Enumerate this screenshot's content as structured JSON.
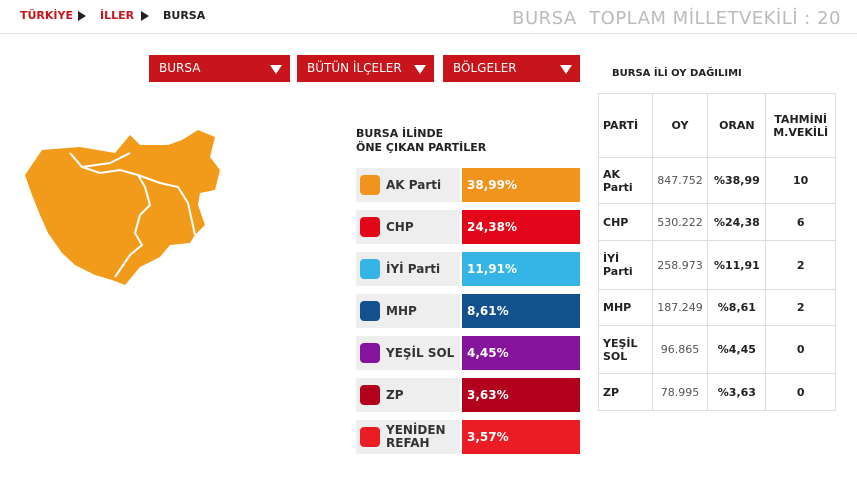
{
  "breadcrumb": [
    "TÜRKİYE",
    "İLLER",
    "BURSA"
  ],
  "header": {
    "title": "BURSA  TOPLAM MİLLETVEKİLİ : 20"
  },
  "dropdowns": [
    "BURSA",
    "BÜTÜN İLÇELER",
    "BÖLGELER"
  ],
  "parties": {
    "heading": [
      "BURSA İLİNDE",
      "ÖNE ÇIKAN PARTİLER"
    ],
    "items": [
      {
        "name": "AK Parti",
        "share": "38,99%",
        "color": "#f0941d"
      },
      {
        "name": "CHP",
        "share": "24,38%",
        "color": "#e3061a"
      },
      {
        "name": "İYİ Parti",
        "share": "11,91%",
        "color": "#35b5e5"
      },
      {
        "name": "MHP",
        "share": "8,61%",
        "color": "#13508e"
      },
      {
        "name": "YEŞİL SOL",
        "share": "4,45%",
        "color": "#85139b"
      },
      {
        "name": "ZP",
        "share": "3,63%",
        "color": "#b3001c"
      },
      {
        "name": "YENİDEN REFAH",
        "share": "3,57%",
        "color": "#ec1c24"
      }
    ]
  },
  "table": {
    "title": "BURSA İLİ OY DAĞILIMI",
    "headers": [
      "PARTİ",
      "OY",
      "ORAN",
      "TAHMİNİ M.VEKİLİ"
    ],
    "rows": [
      [
        "AK Parti",
        "847.752",
        "%38,99",
        "10"
      ],
      [
        "CHP",
        "530.222",
        "%24,38",
        "6"
      ],
      [
        "İYİ Parti",
        "258.973",
        "%11,91",
        "2"
      ],
      [
        "MHP",
        "187.249",
        "%8,61",
        "2"
      ],
      [
        "YEŞİL SOL",
        "96.865",
        "%4,45",
        "0"
      ],
      [
        "ZP",
        "78.995",
        "%3,63",
        "0"
      ]
    ]
  }
}
